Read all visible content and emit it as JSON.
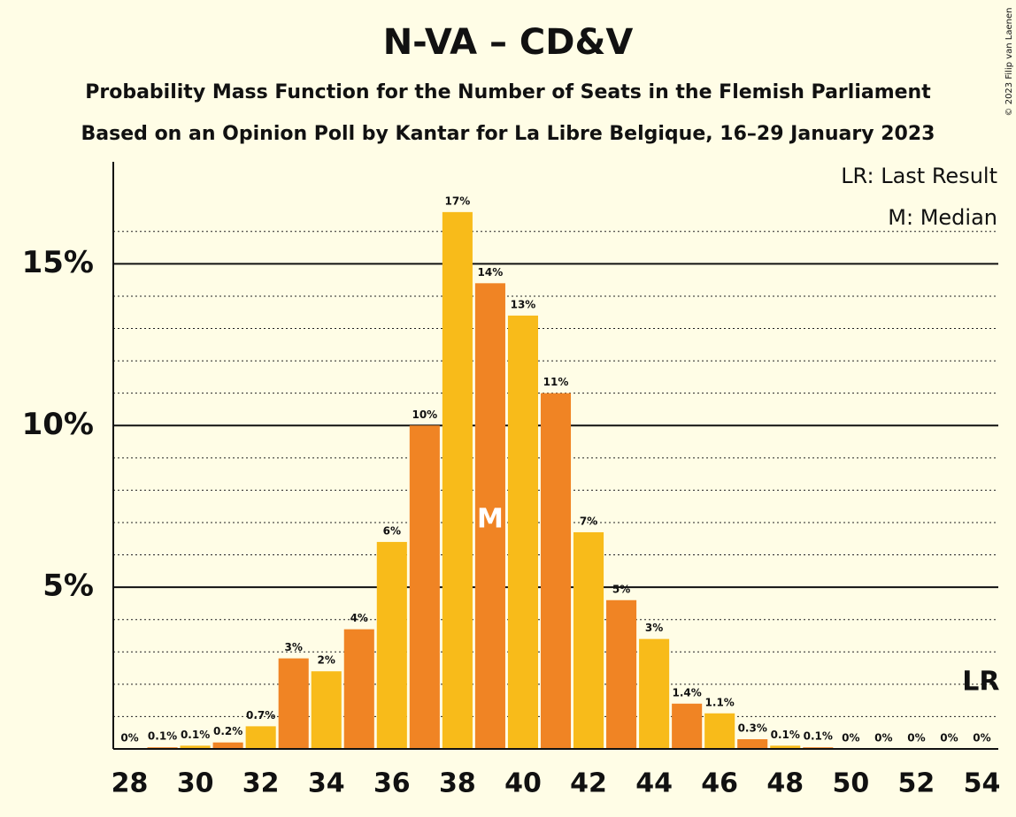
{
  "chart_data": {
    "type": "bar",
    "title": "N-VA – CD&V",
    "subtitle": "Probability Mass Function for the Number of Seats in the Flemish Parliament",
    "subtitle2": "Based on an Opinion Poll by Kantar for La Libre Belgique, 16–29 January 2023",
    "copyright": "© 2023 Filip van Laenen",
    "legend": [
      "LR: Last Result",
      "M: Median"
    ],
    "x": [
      28,
      29,
      30,
      31,
      32,
      33,
      34,
      35,
      36,
      37,
      38,
      39,
      40,
      41,
      42,
      43,
      44,
      45,
      46,
      47,
      48,
      49,
      50,
      51,
      52,
      53,
      54
    ],
    "values": [
      0,
      0.05,
      0.1,
      0.2,
      0.7,
      2.8,
      2.4,
      3.7,
      6.4,
      10,
      16.6,
      14.4,
      13.4,
      11,
      6.7,
      4.6,
      3.4,
      1.4,
      1.1,
      0.3,
      0.1,
      0.05,
      0,
      0,
      0,
      0,
      0
    ],
    "value_labels": [
      "0%",
      "0.1%",
      "0.1%",
      "0.2%",
      "0.7%",
      "3%",
      "2%",
      "4%",
      "6%",
      "10%",
      "17%",
      "14%",
      "13%",
      "11%",
      "7%",
      "5%",
      "3%",
      "1.4%",
      "1.1%",
      "0.3%",
      "0.1%",
      "0.1%",
      "0%",
      "0%",
      "0%",
      "0%",
      "0%"
    ],
    "colors": [
      "#f8bb1a",
      "#f08424"
    ],
    "markers": [
      {
        "x": 39,
        "label": "M"
      },
      {
        "x": 54,
        "label": "LR"
      }
    ],
    "xlim": [
      27.5,
      54.5
    ],
    "xticks": [
      28,
      30,
      32,
      34,
      36,
      38,
      40,
      42,
      44,
      46,
      48,
      50,
      52,
      54
    ],
    "ylim": [
      0,
      18.1
    ],
    "yticks": [
      {
        "value": 5,
        "label": "5%"
      },
      {
        "value": 10,
        "label": "10%"
      },
      {
        "value": 15,
        "label": "15%"
      }
    ],
    "yminorticks": [
      1,
      2,
      3,
      4,
      6,
      7,
      8,
      9,
      11,
      12,
      13,
      14,
      16
    ],
    "grid": true
  }
}
